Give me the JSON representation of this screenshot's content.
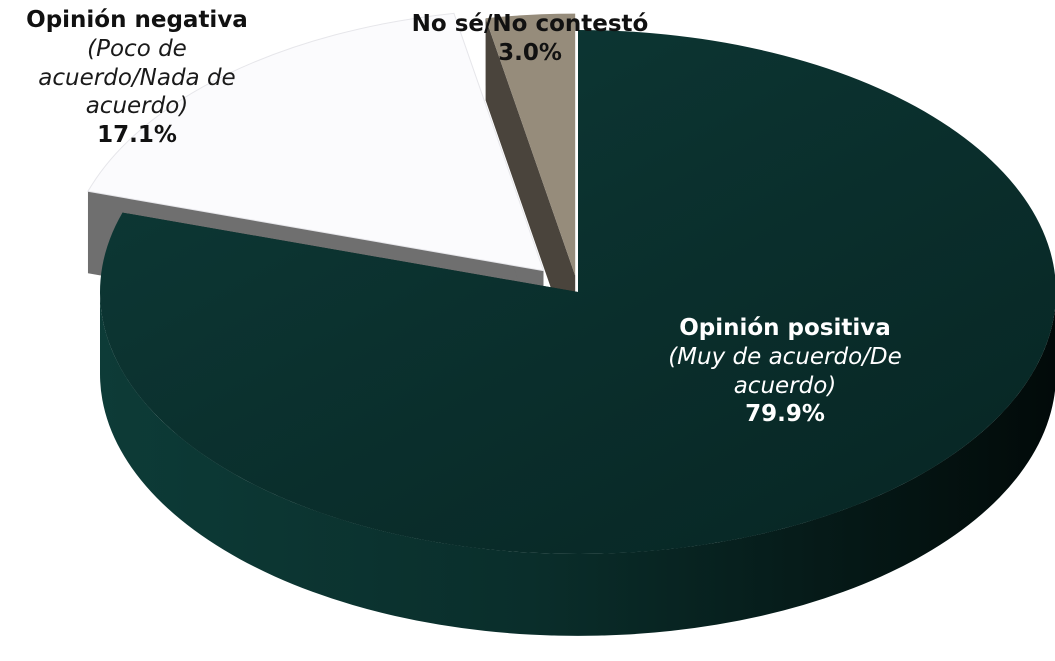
{
  "chart_data": {
    "type": "pie",
    "title": "",
    "slices": [
      {
        "key": "positive",
        "label": "Opinión positiva",
        "sublabel": "(Muy de acuerdo/De acuerdo)",
        "value": 79.9,
        "value_label": "79.9%",
        "color": "#0b3532",
        "side_color": "#062522"
      },
      {
        "key": "negative",
        "label": "Opinión negativa",
        "sublabel": "(Poco de acuerdo/Nada de acuerdo)",
        "value": 17.1,
        "value_label": "17.1%",
        "color": "#fbfbfd",
        "side_color": "#6f6f6f"
      },
      {
        "key": "no-answer",
        "label": "No sé/No contestó",
        "sublabel": "",
        "value": 3.0,
        "value_label": "3.0%",
        "color": "#968c7b",
        "side_color": "#4a443c"
      }
    ],
    "three_d": true,
    "legend": "none"
  }
}
